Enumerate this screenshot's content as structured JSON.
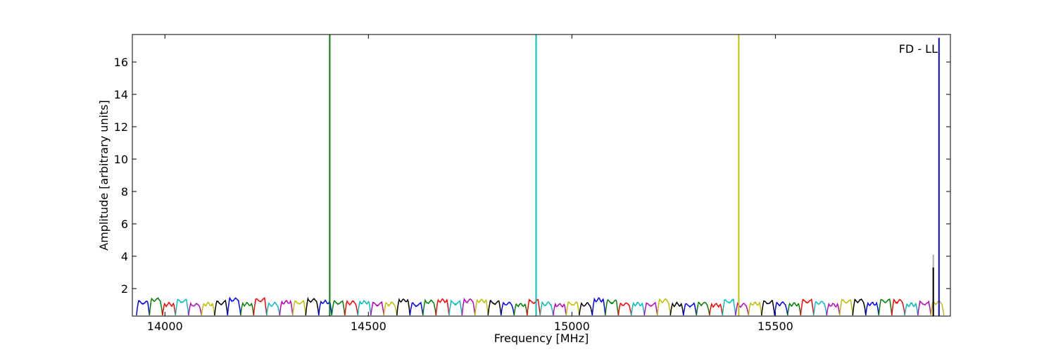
{
  "chart_data": {
    "type": "line",
    "title": "",
    "xlabel": "Frequency [MHz]",
    "ylabel": "Amplitude [arbitrary units]",
    "annotation": "FD - LL",
    "xlim": [
      13920,
      15930
    ],
    "ylim": [
      0.3,
      17.7
    ],
    "xticks": [
      14000,
      14500,
      15000,
      15500
    ],
    "yticks": [
      2,
      4,
      6,
      8,
      10,
      12,
      14,
      16
    ],
    "grid": false,
    "legend": "none",
    "palette": [
      "#0000ff",
      "#008000",
      "#ff0000",
      "#00bfbf",
      "#bf00bf",
      "#bfbf00",
      "#000000"
    ],
    "subband": {
      "start": 13930,
      "width": 32,
      "floor": 0.35,
      "level": 1.15,
      "ripple": 0.12
    },
    "spikes": [
      {
        "x": 14405,
        "y": 17.7,
        "color": "#008000"
      },
      {
        "x": 14912,
        "y": 17.7,
        "color": "#00bfbf"
      },
      {
        "x": 15410,
        "y": 17.7,
        "color": "#bfbf00"
      },
      {
        "x": 15888,
        "y": 4.1,
        "color": "#aaaaaa"
      },
      {
        "x": 15888,
        "y": 3.3,
        "color": "#000000"
      },
      {
        "x": 15902,
        "y": 17.5,
        "color": "#0000ff"
      }
    ]
  }
}
